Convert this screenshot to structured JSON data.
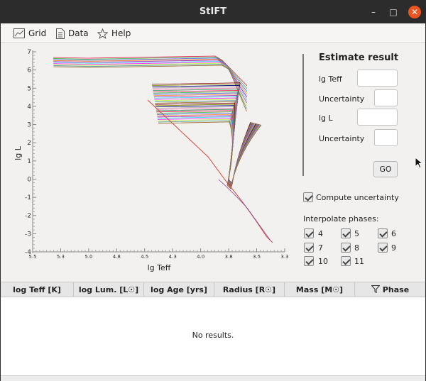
{
  "window": {
    "title": "StIFT"
  },
  "menu": {
    "items": [
      {
        "label": "Grid",
        "icon": "chart-icon"
      },
      {
        "label": "Data",
        "icon": "document-icon"
      },
      {
        "label": "Help",
        "icon": "star-icon"
      }
    ]
  },
  "chart_data": {
    "type": "line",
    "xlabel": "lg Teff",
    "ylabel": "lg L",
    "xlim": [
      5.5,
      3.3
    ],
    "ylim": [
      -4,
      7
    ],
    "x_ticks": [
      "5.5",
      "5.3",
      "5.0",
      "4.8",
      "4.5",
      "4.3",
      "4.0",
      "3.8",
      "3.5",
      "3.3"
    ],
    "y_ticks": [
      "7",
      "6",
      "5",
      "4",
      "3",
      "2",
      "1",
      "0",
      "-1",
      "-2",
      "-3",
      "-4"
    ],
    "description_series": "many stellar evolutionary tracks (Hertzsprung–Russell diagram)"
  },
  "estimate": {
    "title": "Estimate result",
    "teff_label": "lg Teff",
    "teff_unc_label": "Uncertainty",
    "l_label": "lg L",
    "l_unc_label": "Uncertainty",
    "teff_value": "",
    "teff_unc_value": "",
    "l_value": "",
    "l_unc_value": "",
    "go_label": "GO"
  },
  "options": {
    "compute_uncertainty_label": "Compute uncertainty",
    "interpolate_label": "Interpolate phases:",
    "phases": [
      "4",
      "5",
      "6",
      "7",
      "8",
      "9",
      "10",
      "11"
    ]
  },
  "table": {
    "columns": [
      "log Teff [K]",
      "log Lum. [L☉]",
      "log Age [yrs]",
      "Radius [R☉]",
      "Mass [M☉]",
      "Phase"
    ],
    "empty_text": "No results."
  }
}
